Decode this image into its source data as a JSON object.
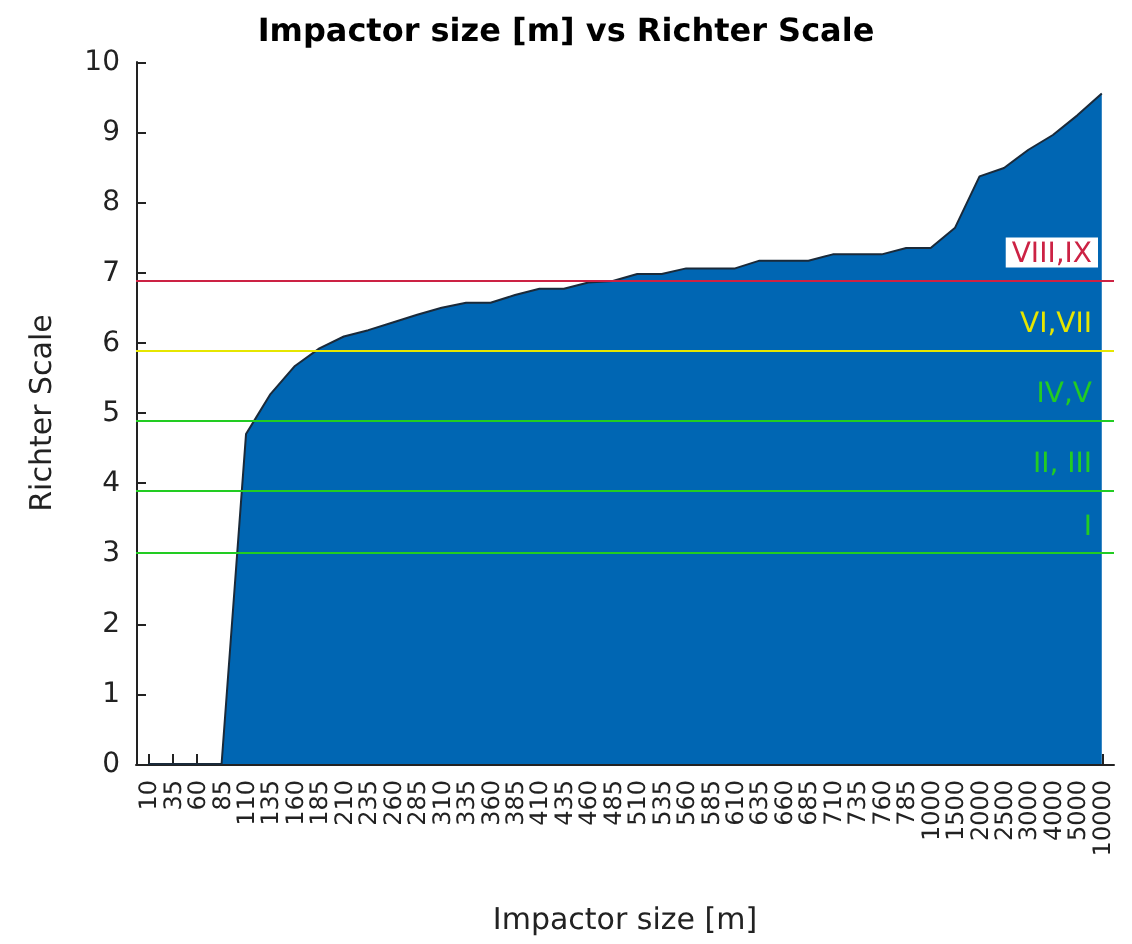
{
  "chart_data": {
    "type": "area",
    "title": "Impactor size [m] vs Richter Scale",
    "xlabel": "Impactor size [m]",
    "ylabel": "Richter Scale",
    "categories": [
      "10",
      "35",
      "60",
      "85",
      "110",
      "135",
      "160",
      "185",
      "210",
      "235",
      "260",
      "285",
      "310",
      "335",
      "360",
      "385",
      "410",
      "435",
      "460",
      "485",
      "510",
      "535",
      "560",
      "585",
      "610",
      "635",
      "660",
      "685",
      "710",
      "735",
      "760",
      "785",
      "1000",
      "1500",
      "2000",
      "2500",
      "3000",
      "4000",
      "5000",
      "10000"
    ],
    "series": [
      {
        "color": "#0066b3",
        "values": [
          0,
          0,
          0,
          0,
          4.7,
          5.27,
          5.67,
          5.92,
          6.09,
          6.18,
          6.29,
          6.4,
          6.5,
          6.57,
          6.57,
          6.68,
          6.77,
          6.77,
          6.86,
          6.88,
          6.98,
          6.98,
          7.06,
          7.06,
          7.06,
          7.17,
          7.17,
          7.17,
          7.26,
          7.26,
          7.26,
          7.35,
          7.35,
          7.64,
          8.37,
          8.49,
          8.75,
          8.96,
          9.24,
          9.55
        ]
      }
    ],
    "ylim": [
      0,
      10
    ],
    "yticks": [
      0,
      1,
      2,
      3,
      4,
      5,
      6,
      7,
      8,
      9,
      10
    ],
    "grid": false,
    "ref_lines": [
      {
        "axis": "y",
        "value": 6.9,
        "label": "VIII,IX",
        "color": "#cc2244"
      },
      {
        "axis": "y",
        "value": 5.9,
        "label": "VI,VII",
        "color": "#e6e600"
      },
      {
        "axis": "y",
        "value": 4.9,
        "label": "IV,V",
        "color": "#22cc22"
      },
      {
        "axis": "y",
        "value": 3.9,
        "label": "II, III",
        "color": "#22cc22"
      },
      {
        "axis": "y",
        "value": 3.0,
        "label": "I",
        "color": "#22cc22"
      }
    ]
  }
}
